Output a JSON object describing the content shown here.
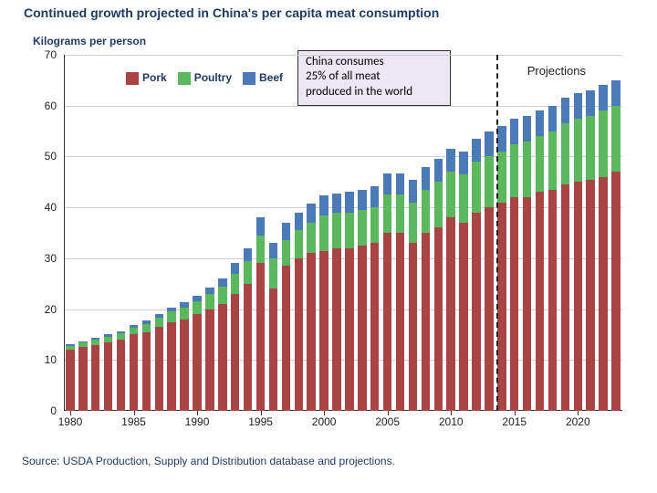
{
  "title": "Continued growth projected in China's per capita meat consumption",
  "ylabel": "Kilograms per person",
  "source": "Source: USDA Production, Supply and Distribution database and projections.",
  "legend": {
    "items": [
      {
        "label": "Pork",
        "color": "#a94444"
      },
      {
        "label": "Poultry",
        "color": "#5cb85c"
      },
      {
        "label": "Beef",
        "color": "#4a7ab8"
      }
    ]
  },
  "annotation": {
    "line1": "China consumes",
    "line2": "25% of all meat",
    "line3": "produced in the world",
    "bg": "#ece7f2",
    "border": "#333333"
  },
  "projections_label": "Projections",
  "chart": {
    "type": "stacked-bar",
    "ylim": [
      0,
      70
    ],
    "ytick_step": 10,
    "grid_color": "#cfcfcf",
    "axis_color": "#333333",
    "background": "#ffffff",
    "bar_width_ratio": 0.68,
    "years": [
      1980,
      1981,
      1982,
      1983,
      1984,
      1985,
      1986,
      1987,
      1988,
      1989,
      1990,
      1991,
      1992,
      1993,
      1994,
      1995,
      1996,
      1997,
      1998,
      1999,
      2000,
      2001,
      2002,
      2003,
      2004,
      2005,
      2006,
      2007,
      2008,
      2009,
      2010,
      2011,
      2012,
      2013,
      2014,
      2015,
      2016,
      2017,
      2018,
      2019,
      2020,
      2021,
      2022,
      2023
    ],
    "xtick_years": [
      1980,
      1985,
      1990,
      1995,
      2000,
      2005,
      2010,
      2015,
      2020
    ],
    "projection_start_year": 2013,
    "series": {
      "pork": {
        "color": "#a94444",
        "values": [
          12.0,
          12.5,
          13.0,
          13.5,
          14.0,
          15.0,
          15.5,
          16.5,
          17.5,
          18.0,
          19.0,
          20.0,
          21.0,
          23.0,
          25.0,
          29.0,
          24.0,
          28.5,
          30.0,
          31.0,
          31.5,
          32.0,
          32.0,
          32.5,
          33.0,
          35.0,
          35.0,
          33.0,
          35.0,
          36.0,
          38.0,
          37.0,
          39.0,
          40.0,
          41.0,
          42.0,
          42.0,
          43.0,
          43.5,
          44.5,
          45.0,
          45.5,
          46.0,
          47.0
        ]
      },
      "poultry": {
        "color": "#5cb85c",
        "values": [
          0.8,
          0.9,
          1.0,
          1.1,
          1.2,
          1.4,
          1.6,
          1.8,
          2.0,
          2.3,
          2.6,
          3.0,
          3.5,
          4.0,
          4.5,
          5.5,
          6.0,
          5.0,
          5.5,
          6.0,
          7.0,
          7.0,
          7.0,
          7.0,
          7.0,
          7.5,
          7.5,
          8.0,
          8.5,
          9.0,
          9.0,
          9.5,
          10.0,
          10.0,
          10.0,
          10.5,
          11.0,
          11.0,
          11.5,
          12.0,
          12.5,
          12.5,
          13.0,
          13.0
        ]
      },
      "beef": {
        "color": "#4a7ab8",
        "values": [
          0.3,
          0.3,
          0.4,
          0.4,
          0.5,
          0.5,
          0.6,
          0.7,
          0.8,
          1.0,
          1.1,
          1.3,
          1.6,
          2.0,
          2.5,
          3.5,
          3.0,
          3.5,
          3.5,
          3.8,
          3.8,
          3.8,
          4.0,
          4.0,
          4.2,
          4.2,
          4.2,
          4.5,
          4.5,
          4.5,
          4.5,
          4.5,
          4.5,
          5.0,
          5.0,
          5.0,
          5.0,
          5.0,
          5.0,
          5.0,
          5.0,
          5.0,
          5.0,
          5.0
        ]
      }
    }
  }
}
